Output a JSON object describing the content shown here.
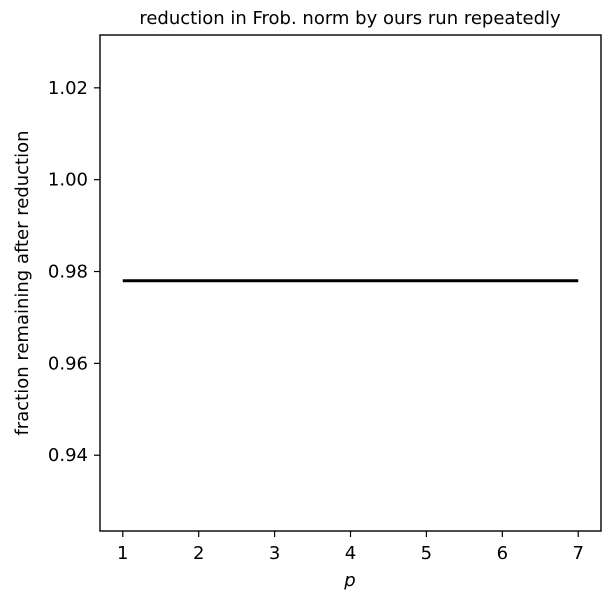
{
  "chart_data": {
    "type": "line",
    "title": "reduction in Frob. norm by ours run repeatedly",
    "xlabel": "p",
    "ylabel": "fraction remaining after reduction",
    "x": [
      1,
      2,
      3,
      4,
      5,
      6,
      7
    ],
    "series": [
      {
        "values": [
          0.978,
          0.978,
          0.978,
          0.978,
          0.978,
          0.978,
          0.978
        ],
        "color": "#000000"
      }
    ],
    "xlim": [
      0.7,
      7.3
    ],
    "ylim": [
      0.9235,
      1.0315
    ],
    "x_ticks": [
      1,
      2,
      3,
      4,
      5,
      6,
      7
    ],
    "x_tick_labels": [
      "1",
      "2",
      "3",
      "4",
      "5",
      "6",
      "7"
    ],
    "y_ticks": [
      0.94,
      0.96,
      0.98,
      1.0,
      1.02
    ],
    "y_tick_labels": [
      "0.94",
      "0.96",
      "0.98",
      "1.00",
      "1.02"
    ],
    "grid": false,
    "legend": "none"
  }
}
